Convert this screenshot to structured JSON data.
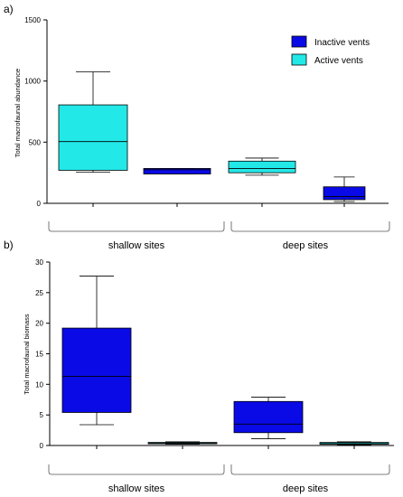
{
  "colors": {
    "inactive": "#0a0ae6",
    "active": "#22e8e8",
    "outline": "#000000"
  },
  "chart_data": [
    {
      "type": "box",
      "panel_label": "a)",
      "ylabel": "Total macrofaunal abundance",
      "ylim": [
        0,
        1500
      ],
      "yticks": [
        0,
        500,
        1000,
        1500
      ],
      "ytick_labels": [
        "0",
        "500",
        "1000",
        "1500"
      ],
      "legend": {
        "placement": "top-right",
        "items": [
          {
            "label": "Inactive vents",
            "series": "inactive"
          },
          {
            "label": "Active vents",
            "series": "active"
          }
        ]
      },
      "groups": [
        {
          "label": "shallow sites",
          "positions": [
            1,
            2
          ]
        },
        {
          "label": "deep sites",
          "positions": [
            3,
            4
          ]
        }
      ],
      "boxes": [
        {
          "position": 1,
          "series": "active",
          "min": 255,
          "q1": 270,
          "median": 505,
          "q3": 805,
          "max": 1075
        },
        {
          "position": 2,
          "series": "inactive",
          "min": 240,
          "q1": 240,
          "median": 275,
          "q3": 285,
          "max": 285
        },
        {
          "position": 3,
          "series": "active",
          "min": 230,
          "q1": 250,
          "median": 285,
          "q3": 345,
          "max": 370
        },
        {
          "position": 4,
          "series": "inactive",
          "min": 15,
          "q1": 30,
          "median": 55,
          "q3": 135,
          "max": 215
        }
      ]
    },
    {
      "type": "box",
      "panel_label": "b)",
      "ylabel": "Total macrofaunal biomass",
      "ylim": [
        0,
        30
      ],
      "yticks": [
        0,
        5,
        10,
        15,
        20,
        25,
        30
      ],
      "ytick_labels": [
        "0",
        "5",
        "10",
        "15",
        "20",
        "25",
        "30"
      ],
      "groups": [
        {
          "label": "shallow sites",
          "positions": [
            1,
            2
          ]
        },
        {
          "label": "deep sites",
          "positions": [
            3,
            4
          ]
        }
      ],
      "boxes": [
        {
          "position": 1,
          "series": "inactive",
          "min": 3.4,
          "q1": 5.4,
          "median": 11.3,
          "q3": 19.2,
          "max": 27.7
        },
        {
          "position": 2,
          "series": "active",
          "min": 0.2,
          "q1": 0.3,
          "median": 0.4,
          "q3": 0.5,
          "max": 0.6
        },
        {
          "position": 3,
          "series": "inactive",
          "min": 1.1,
          "q1": 2.1,
          "median": 3.5,
          "q3": 7.2,
          "max": 7.9
        },
        {
          "position": 4,
          "series": "active",
          "min": 0.1,
          "q1": 0.2,
          "median": 0.3,
          "q3": 0.5,
          "max": 0.6
        }
      ]
    }
  ]
}
